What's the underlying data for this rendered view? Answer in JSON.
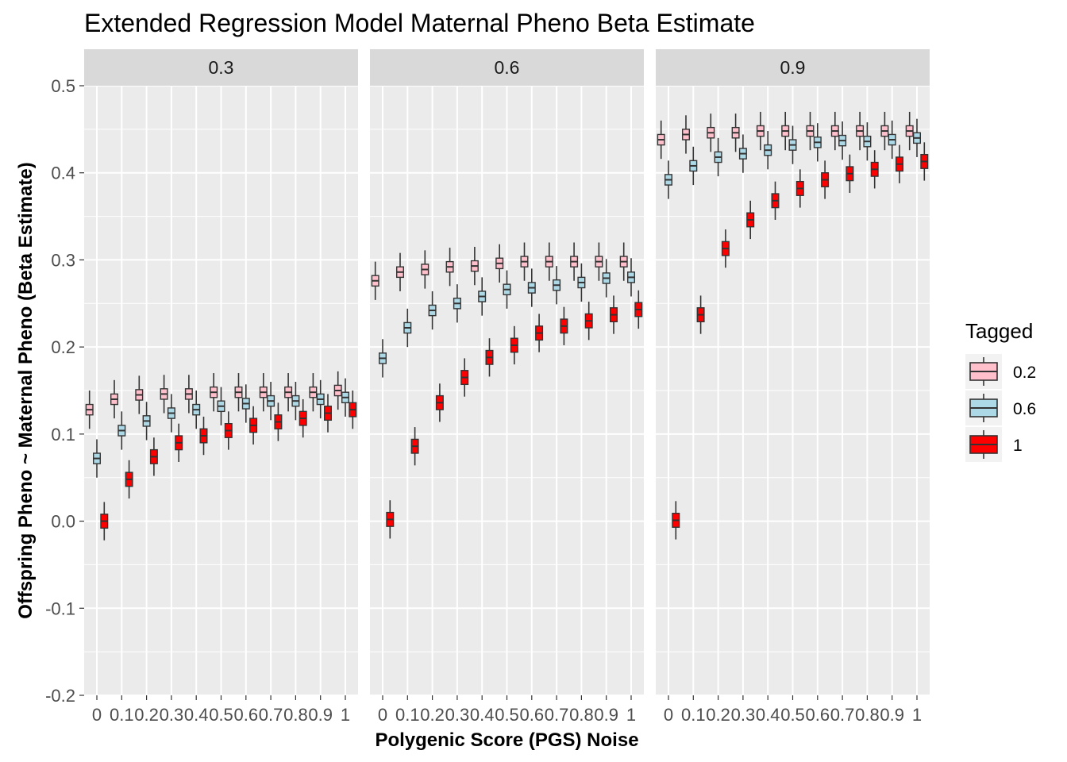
{
  "chart_data": {
    "type": "box",
    "title": "Extended Regression Model Maternal Pheno Beta Estimate",
    "xlabel": "Polygenic Score (PGS) Noise",
    "ylabel": "Offspring Pheno ~ Maternal Pheno (Beta Estimate)",
    "ylim": [
      -0.2,
      0.5
    ],
    "y_ticks": [
      -0.2,
      -0.1,
      0.0,
      0.1,
      0.2,
      0.3,
      0.4,
      0.5
    ],
    "y_tick_labels": [
      "-0.2",
      "-0.1",
      "0.0",
      "0.1",
      "0.2",
      "0.3",
      "0.4",
      "0.5"
    ],
    "categories": [
      "0",
      "0.1",
      "0.2",
      "0.3",
      "0.4",
      "0.5",
      "0.6",
      "0.7",
      "0.8",
      "0.9",
      "1"
    ],
    "grid": true,
    "legend": {
      "title": "Tagged",
      "placement": "right",
      "entries": [
        {
          "label": "0.2",
          "color": "#FFC0CB"
        },
        {
          "label": "0.6",
          "color": "#ADD8E6"
        },
        {
          "label": "1",
          "color": "#FF0000"
        }
      ]
    },
    "facets": [
      {
        "label": "0.3",
        "series": [
          {
            "tagged": "0.2",
            "medians": [
              0.128,
              0.14,
              0.145,
              0.146,
              0.146,
              0.148,
              0.148,
              0.148,
              0.148,
              0.148,
              0.15
            ]
          },
          {
            "tagged": "0.6",
            "medians": [
              0.072,
              0.104,
              0.115,
              0.124,
              0.128,
              0.132,
              0.135,
              0.138,
              0.138,
              0.14,
              0.142
            ]
          },
          {
            "tagged": "1",
            "medians": [
              0.0,
              0.048,
              0.074,
              0.09,
              0.098,
              0.104,
              0.11,
              0.114,
              0.118,
              0.124,
              0.128
            ]
          }
        ]
      },
      {
        "label": "0.6",
        "series": [
          {
            "tagged": "0.2",
            "medians": [
              0.276,
              0.286,
              0.289,
              0.292,
              0.293,
              0.296,
              0.298,
              0.298,
              0.298,
              0.298,
              0.298
            ]
          },
          {
            "tagged": "0.6",
            "medians": [
              0.187,
              0.222,
              0.242,
              0.25,
              0.258,
              0.266,
              0.268,
              0.271,
              0.274,
              0.279,
              0.28
            ]
          },
          {
            "tagged": "1",
            "medians": [
              0.002,
              0.086,
              0.136,
              0.165,
              0.188,
              0.202,
              0.216,
              0.224,
              0.23,
              0.237,
              0.243
            ]
          }
        ]
      },
      {
        "label": "0.9",
        "series": [
          {
            "tagged": "0.2",
            "medians": [
              0.438,
              0.444,
              0.446,
              0.446,
              0.448,
              0.448,
              0.448,
              0.448,
              0.448,
              0.448,
              0.448
            ]
          },
          {
            "tagged": "0.6",
            "medians": [
              0.392,
              0.408,
              0.418,
              0.422,
              0.426,
              0.432,
              0.435,
              0.437,
              0.436,
              0.438,
              0.44
            ]
          },
          {
            "tagged": "1",
            "medians": [
              0.001,
              0.237,
              0.313,
              0.346,
              0.368,
              0.382,
              0.392,
              0.399,
              0.404,
              0.41,
              0.413
            ]
          }
        ]
      }
    ]
  }
}
